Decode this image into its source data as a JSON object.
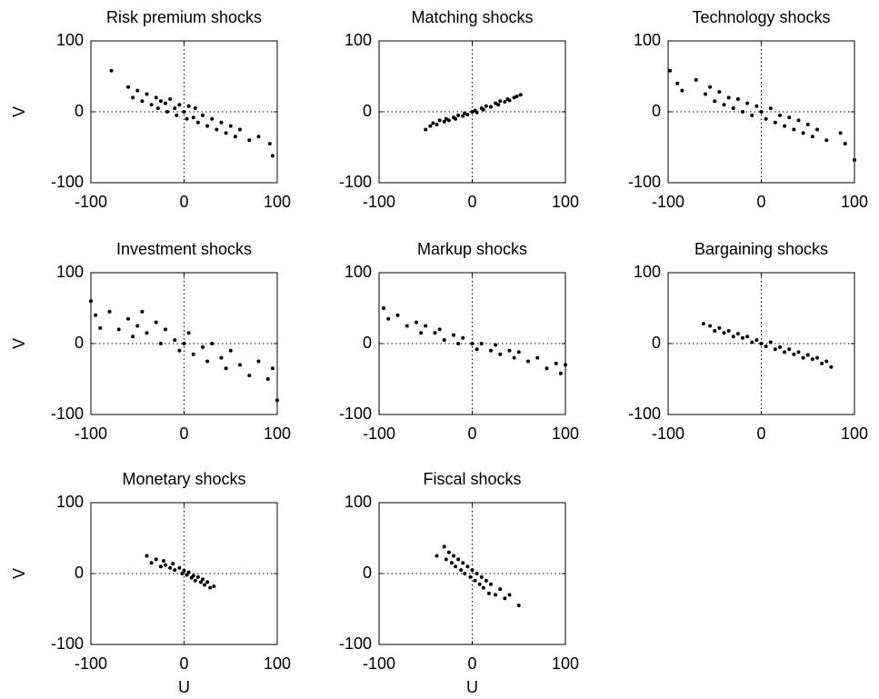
{
  "chart_data": [
    {
      "type": "scatter",
      "title": "Risk premium shocks",
      "ylabel": "V",
      "color": "#000000",
      "zero_lines": true,
      "x": [
        -78,
        -60,
        -55,
        -50,
        -45,
        -40,
        -35,
        -30,
        -28,
        -25,
        -20,
        -18,
        -15,
        -10,
        -8,
        -5,
        0,
        3,
        5,
        10,
        12,
        15,
        20,
        25,
        30,
        35,
        40,
        45,
        50,
        55,
        60,
        70,
        80,
        92,
        95
      ],
      "y": [
        58,
        35,
        20,
        30,
        15,
        25,
        10,
        20,
        5,
        15,
        12,
        0,
        18,
        5,
        -5,
        10,
        0,
        -10,
        8,
        -8,
        5,
        -15,
        -5,
        -20,
        -10,
        -25,
        -15,
        -30,
        -20,
        -35,
        -25,
        -40,
        -35,
        -45,
        -62
      ],
      "xlim": [
        -100,
        100
      ],
      "ylim": [
        -100,
        100
      ],
      "xticks": [
        -100,
        0,
        100
      ],
      "yticks": [
        -100,
        0,
        100
      ]
    },
    {
      "type": "scatter",
      "title": "Matching shocks",
      "color": "#000000",
      "zero_lines": true,
      "x": [
        -50,
        -45,
        -42,
        -38,
        -35,
        -30,
        -28,
        -25,
        -20,
        -18,
        -15,
        -10,
        -8,
        -5,
        0,
        3,
        5,
        10,
        12,
        15,
        20,
        25,
        28,
        30,
        35,
        38,
        40,
        45,
        48,
        52
      ],
      "y": [
        -25,
        -20,
        -16,
        -18,
        -12,
        -14,
        -10,
        -12,
        -8,
        -10,
        -5,
        -6,
        -2,
        -4,
        0,
        2,
        -1,
        5,
        3,
        8,
        7,
        12,
        10,
        15,
        14,
        18,
        16,
        20,
        22,
        24
      ],
      "xlim": [
        -100,
        100
      ],
      "ylim": [
        -100,
        100
      ],
      "xticks": [
        -100,
        0,
        100
      ],
      "yticks": [
        -100,
        0,
        100
      ]
    },
    {
      "type": "scatter",
      "title": "Technology shocks",
      "color": "#000000",
      "zero_lines": true,
      "x": [
        -98,
        -90,
        -85,
        -70,
        -60,
        -55,
        -50,
        -45,
        -40,
        -35,
        -30,
        -25,
        -20,
        -15,
        -10,
        -5,
        0,
        5,
        10,
        15,
        20,
        25,
        30,
        35,
        40,
        45,
        50,
        55,
        60,
        70,
        85,
        90,
        100
      ],
      "y": [
        58,
        40,
        30,
        45,
        25,
        35,
        15,
        28,
        10,
        20,
        5,
        18,
        0,
        12,
        -5,
        8,
        0,
        -10,
        5,
        -15,
        -5,
        -20,
        -8,
        -25,
        -12,
        -30,
        -18,
        -35,
        -25,
        -40,
        -30,
        -45,
        -68
      ],
      "xlim": [
        -100,
        100
      ],
      "ylim": [
        -100,
        100
      ],
      "xticks": [
        -100,
        0,
        100
      ],
      "yticks": [
        -100,
        0,
        100
      ]
    },
    {
      "type": "scatter",
      "title": "Investment shocks",
      "ylabel": "V",
      "color": "#000000",
      "zero_lines": true,
      "x": [
        -100,
        -95,
        -90,
        -80,
        -70,
        -60,
        -55,
        -50,
        -45,
        -40,
        -30,
        -25,
        -20,
        -10,
        -5,
        0,
        5,
        10,
        20,
        25,
        30,
        40,
        45,
        50,
        60,
        70,
        80,
        90,
        95,
        100
      ],
      "y": [
        60,
        40,
        22,
        45,
        20,
        35,
        10,
        25,
        45,
        15,
        30,
        0,
        20,
        5,
        -10,
        0,
        15,
        -15,
        -5,
        -25,
        0,
        -20,
        -35,
        -10,
        -30,
        -45,
        -25,
        -50,
        -35,
        -80
      ],
      "xlim": [
        -100,
        100
      ],
      "ylim": [
        -100,
        100
      ],
      "xticks": [
        -100,
        0,
        100
      ],
      "yticks": [
        -100,
        0,
        100
      ]
    },
    {
      "type": "scatter",
      "title": "Markup shocks",
      "color": "#000000",
      "zero_lines": true,
      "x": [
        -95,
        -90,
        -80,
        -70,
        -60,
        -55,
        -50,
        -40,
        -35,
        -30,
        -20,
        -15,
        -10,
        0,
        5,
        10,
        20,
        25,
        30,
        40,
        45,
        50,
        60,
        70,
        80,
        90,
        95,
        100
      ],
      "y": [
        50,
        35,
        40,
        25,
        30,
        15,
        25,
        15,
        20,
        5,
        12,
        0,
        8,
        0,
        -8,
        0,
        -10,
        -2,
        -15,
        -10,
        -20,
        -12,
        -25,
        -20,
        -35,
        -28,
        -42,
        -30
      ],
      "xlim": [
        -100,
        100
      ],
      "ylim": [
        -100,
        100
      ],
      "xticks": [
        -100,
        0,
        100
      ],
      "yticks": [
        -100,
        0,
        100
      ]
    },
    {
      "type": "scatter",
      "title": "Bargaining shocks",
      "color": "#000000",
      "zero_lines": true,
      "x": [
        -62,
        -55,
        -50,
        -45,
        -40,
        -35,
        -30,
        -25,
        -20,
        -15,
        -10,
        -5,
        0,
        5,
        10,
        15,
        20,
        25,
        30,
        35,
        40,
        45,
        50,
        55,
        60,
        65,
        70,
        75
      ],
      "y": [
        28,
        25,
        18,
        22,
        15,
        18,
        10,
        14,
        8,
        10,
        2,
        5,
        0,
        -4,
        2,
        -8,
        -5,
        -12,
        -8,
        -15,
        -12,
        -20,
        -16,
        -22,
        -20,
        -28,
        -25,
        -33
      ],
      "xlim": [
        -100,
        100
      ],
      "ylim": [
        -100,
        100
      ],
      "xticks": [
        -100,
        0,
        100
      ],
      "yticks": [
        -100,
        0,
        100
      ]
    },
    {
      "type": "scatter",
      "title": "Monetary shocks",
      "ylabel": "V",
      "xlabel": "U",
      "color": "#000000",
      "zero_lines": true,
      "x": [
        -40,
        -35,
        -30,
        -25,
        -22,
        -20,
        -15,
        -12,
        -10,
        -5,
        -2,
        0,
        3,
        5,
        8,
        10,
        12,
        15,
        18,
        20,
        22,
        25,
        28,
        32
      ],
      "y": [
        25,
        15,
        20,
        10,
        18,
        12,
        8,
        14,
        5,
        8,
        0,
        4,
        -2,
        2,
        -6,
        -3,
        -10,
        -5,
        -12,
        -8,
        -16,
        -12,
        -20,
        -18
      ],
      "xlim": [
        -100,
        100
      ],
      "ylim": [
        -100,
        100
      ],
      "xticks": [
        -100,
        0,
        100
      ],
      "yticks": [
        -100,
        0,
        100
      ]
    },
    {
      "type": "scatter",
      "title": "Fiscal shocks",
      "xlabel": "U",
      "color": "#000000",
      "zero_lines": true,
      "x": [
        -38,
        -30,
        -28,
        -25,
        -22,
        -20,
        -18,
        -15,
        -12,
        -10,
        -8,
        -5,
        -2,
        0,
        3,
        5,
        8,
        10,
        12,
        15,
        18,
        20,
        25,
        30,
        35,
        40,
        50
      ],
      "y": [
        25,
        38,
        20,
        30,
        15,
        25,
        10,
        20,
        5,
        15,
        0,
        10,
        -5,
        5,
        -10,
        0,
        -15,
        -5,
        -20,
        -10,
        -28,
        -15,
        -30,
        -22,
        -35,
        -30,
        -45
      ],
      "xlim": [
        -100,
        100
      ],
      "ylim": [
        -100,
        100
      ],
      "xticks": [
        -100,
        0,
        100
      ],
      "yticks": [
        -100,
        0,
        100
      ]
    }
  ]
}
